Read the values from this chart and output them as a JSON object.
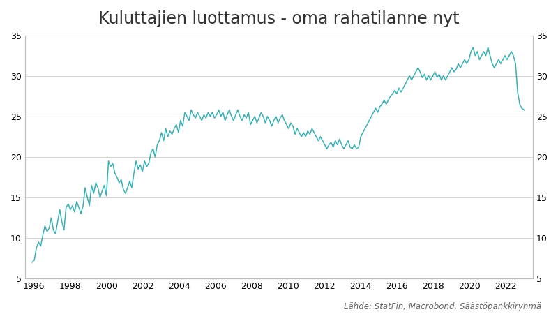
{
  "title": "Kuluttajien luottamus - oma rahatilanne nyt",
  "source": "Lähde: StatFin, Macrobond, Säästöpankkiryhmä",
  "line_color": "#3AAFB5",
  "background_color": "#ffffff",
  "grid_color": "#cccccc",
  "ylim": [
    5,
    35
  ],
  "yticks": [
    5,
    10,
    15,
    20,
    25,
    30,
    35
  ],
  "title_fontsize": 17,
  "source_fontsize": 8.5,
  "values": [
    7.0,
    7.3,
    8.8,
    9.5,
    9.0,
    10.3,
    11.5,
    10.8,
    11.2,
    12.5,
    11.0,
    10.5,
    12.0,
    13.5,
    12.0,
    11.0,
    13.8,
    14.2,
    13.5,
    14.0,
    13.2,
    14.5,
    13.8,
    13.0,
    14.0,
    16.2,
    15.0,
    14.0,
    16.5,
    15.5,
    16.8,
    16.2,
    15.0,
    15.8,
    16.5,
    15.2,
    19.5,
    18.8,
    19.2,
    18.0,
    17.5,
    16.8,
    17.2,
    16.0,
    15.5,
    16.2,
    17.0,
    16.2,
    18.0,
    19.5,
    18.5,
    19.0,
    18.2,
    19.5,
    18.8,
    19.2,
    20.5,
    21.0,
    20.0,
    21.5,
    22.0,
    23.0,
    22.0,
    23.5,
    22.5,
    23.2,
    22.8,
    23.5,
    24.0,
    23.0,
    24.5,
    23.8,
    25.5,
    25.0,
    24.5,
    25.8,
    25.2,
    24.8,
    25.5,
    25.0,
    24.5,
    25.2,
    24.8,
    25.5,
    25.0,
    25.5,
    24.8,
    25.2,
    25.8,
    25.0,
    25.5,
    24.5,
    25.2,
    25.8,
    25.0,
    24.5,
    25.2,
    25.8,
    25.0,
    24.5,
    25.2,
    24.8,
    25.5,
    24.0,
    24.5,
    25.0,
    24.2,
    24.8,
    25.5,
    25.0,
    24.2,
    25.0,
    24.5,
    23.8,
    24.5,
    25.0,
    24.2,
    24.8,
    25.2,
    24.5,
    24.0,
    23.5,
    24.2,
    23.8,
    22.8,
    23.5,
    23.0,
    22.5,
    23.0,
    22.5,
    23.2,
    22.8,
    23.5,
    23.0,
    22.5,
    22.0,
    22.5,
    22.0,
    21.5,
    21.0,
    21.5,
    21.8,
    21.2,
    22.0,
    21.5,
    22.2,
    21.5,
    21.0,
    21.5,
    22.0,
    21.2,
    21.0,
    21.5,
    21.0,
    21.2,
    22.5,
    23.0,
    23.5,
    24.0,
    24.5,
    25.0,
    25.5,
    26.0,
    25.5,
    26.2,
    26.5,
    27.0,
    26.5,
    27.0,
    27.5,
    27.8,
    28.2,
    27.8,
    28.5,
    28.0,
    28.5,
    29.0,
    29.5,
    30.0,
    29.5,
    30.0,
    30.5,
    31.0,
    30.5,
    29.8,
    30.2,
    29.5,
    30.0,
    29.5,
    30.0,
    30.5,
    29.8,
    30.2,
    29.5,
    30.0,
    29.5,
    30.0,
    30.5,
    31.0,
    30.5,
    30.8,
    31.5,
    31.0,
    31.5,
    32.0,
    31.5,
    32.0,
    33.0,
    33.5,
    32.5,
    33.0,
    32.0,
    32.5,
    33.0,
    32.5,
    33.5,
    32.5,
    31.5,
    31.0,
    31.5,
    32.0,
    31.5,
    32.0,
    32.5,
    32.0,
    32.5,
    33.0,
    32.5,
    31.5,
    28.0,
    26.5,
    26.0,
    25.8
  ],
  "x_start_year": 1995.9,
  "x_end_year": 2023.0,
  "xlim": [
    1995.5,
    2023.5
  ],
  "xtick_years": [
    1996,
    1998,
    2000,
    2002,
    2004,
    2006,
    2008,
    2010,
    2012,
    2014,
    2016,
    2018,
    2020,
    2022
  ]
}
